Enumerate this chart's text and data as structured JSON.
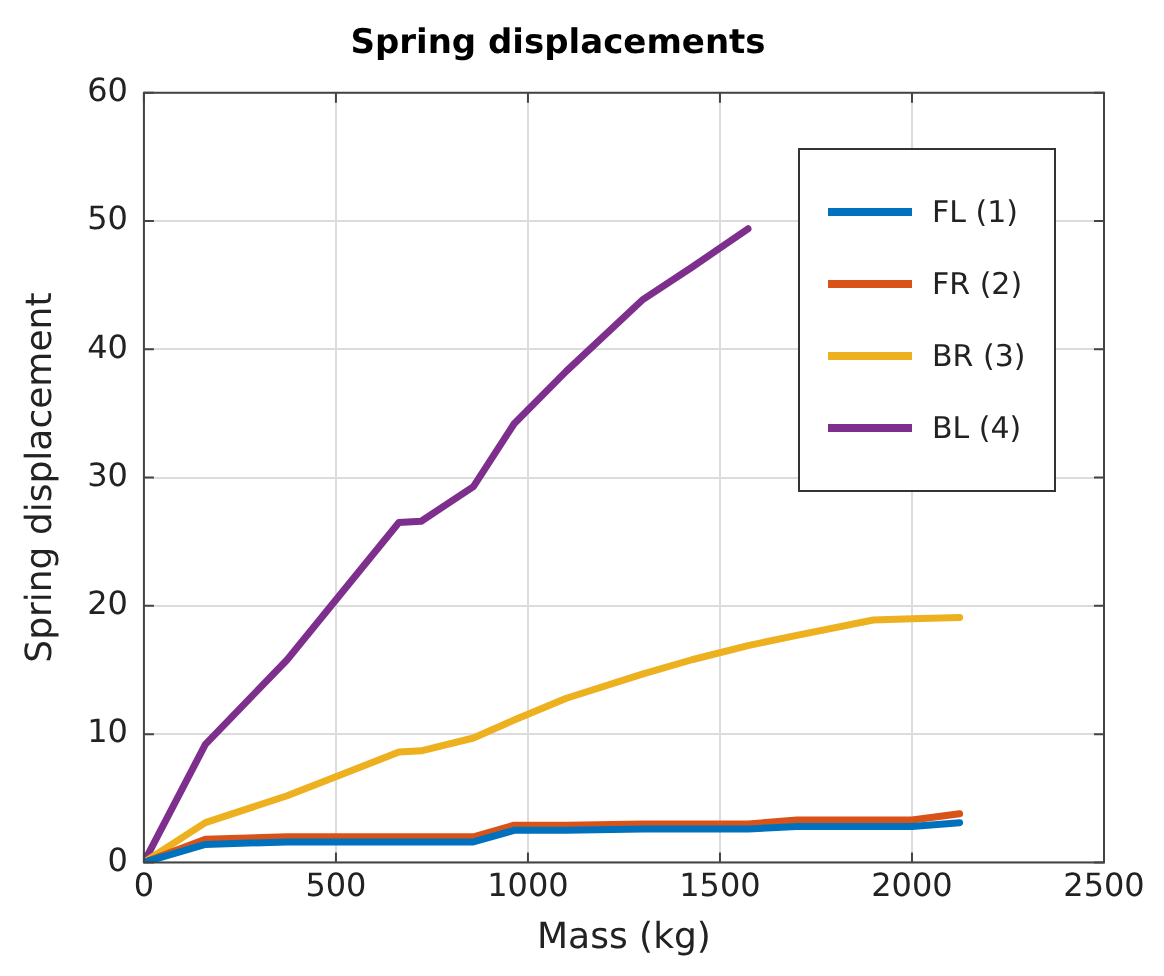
{
  "chart_data": {
    "type": "line",
    "title": "Spring displacements",
    "xlabel": "Mass (kg)",
    "ylabel": "Spring displacement",
    "x": [
      0,
      160,
      373,
      664,
      722,
      858,
      964,
      1100,
      1300,
      1427,
      1573,
      1700,
      1899,
      2000,
      2124
    ],
    "series": [
      {
        "name": "FL (1)",
        "color": "#0072bd",
        "values": [
          0,
          1.4,
          1.6,
          1.6,
          1.6,
          1.6,
          2.5,
          2.5,
          2.6,
          2.6,
          2.6,
          2.8,
          2.8,
          2.8,
          3.1
        ]
      },
      {
        "name": "FR (2)",
        "color": "#d95319",
        "values": [
          0,
          1.8,
          2.0,
          2.0,
          2.0,
          2.0,
          2.9,
          2.9,
          3.0,
          3.0,
          3.0,
          3.3,
          3.3,
          3.3,
          3.8
        ]
      },
      {
        "name": "BR (3)",
        "color": "#edb120",
        "values": [
          0,
          3.1,
          5.2,
          8.6,
          8.7,
          9.7,
          11.1,
          12.8,
          14.7,
          15.8,
          16.9,
          17.7,
          18.9,
          19.0,
          19.1
        ]
      },
      {
        "name": "BL (4)",
        "color": "#7e2f8e",
        "values": [
          0,
          9.2,
          15.8,
          26.5,
          26.6,
          29.3,
          34.2,
          38.3,
          43.9,
          46.4,
          49.4,
          null,
          null,
          null,
          null
        ]
      }
    ],
    "xlim": [
      0,
      2500
    ],
    "xticks": [
      0,
      500,
      1000,
      1500,
      2000,
      2500
    ],
    "ylim": [
      0,
      60
    ],
    "yticks": [
      0,
      10,
      20,
      30,
      40,
      50,
      60
    ],
    "grid": true,
    "legend": "top right",
    "marker": "none",
    "line_style": "solid"
  }
}
